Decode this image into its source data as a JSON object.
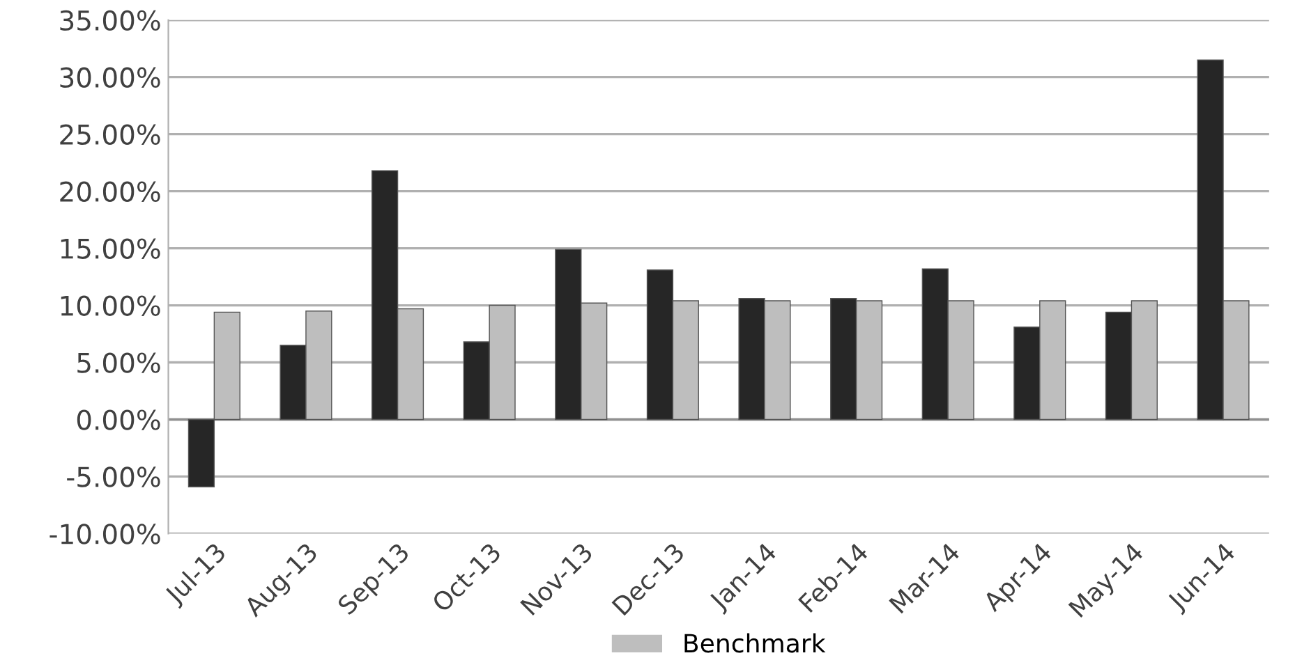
{
  "chart_data": {
    "type": "bar",
    "categories": [
      "Jul-13",
      "Aug-13",
      "Sep-13",
      "Oct-13",
      "Nov-13",
      "Dec-13",
      "Jan-14",
      "Feb-14",
      "Mar-14",
      "Apr-14",
      "May-14",
      "Jun-14"
    ],
    "series": [
      {
        "color": "#262626",
        "values": [
          -5.9,
          6.5,
          21.8,
          6.8,
          14.9,
          13.1,
          10.6,
          10.6,
          13.2,
          8.1,
          9.4,
          31.5
        ]
      },
      {
        "name": "Benchmark",
        "color": "#bebebe",
        "values": [
          9.4,
          9.5,
          9.7,
          10.0,
          10.2,
          10.4,
          10.4,
          10.4,
          10.4,
          10.4,
          10.4,
          10.4
        ]
      }
    ],
    "ylim": [
      -10,
      35
    ],
    "yticks": [
      {
        "value": -10,
        "label": "-10.00%"
      },
      {
        "value": -5,
        "label": "-5.00%"
      },
      {
        "value": 0,
        "label": "0.00%"
      },
      {
        "value": 5,
        "label": "5.00%"
      },
      {
        "value": 10,
        "label": "10.00%"
      },
      {
        "value": 15,
        "label": "15.00%"
      },
      {
        "value": 20,
        "label": "20.00%"
      },
      {
        "value": 25,
        "label": "25.00%"
      },
      {
        "value": 30,
        "label": "30.00%"
      },
      {
        "value": 35,
        "label": "35.00%"
      }
    ],
    "grid": "y",
    "legend": "bottom"
  }
}
